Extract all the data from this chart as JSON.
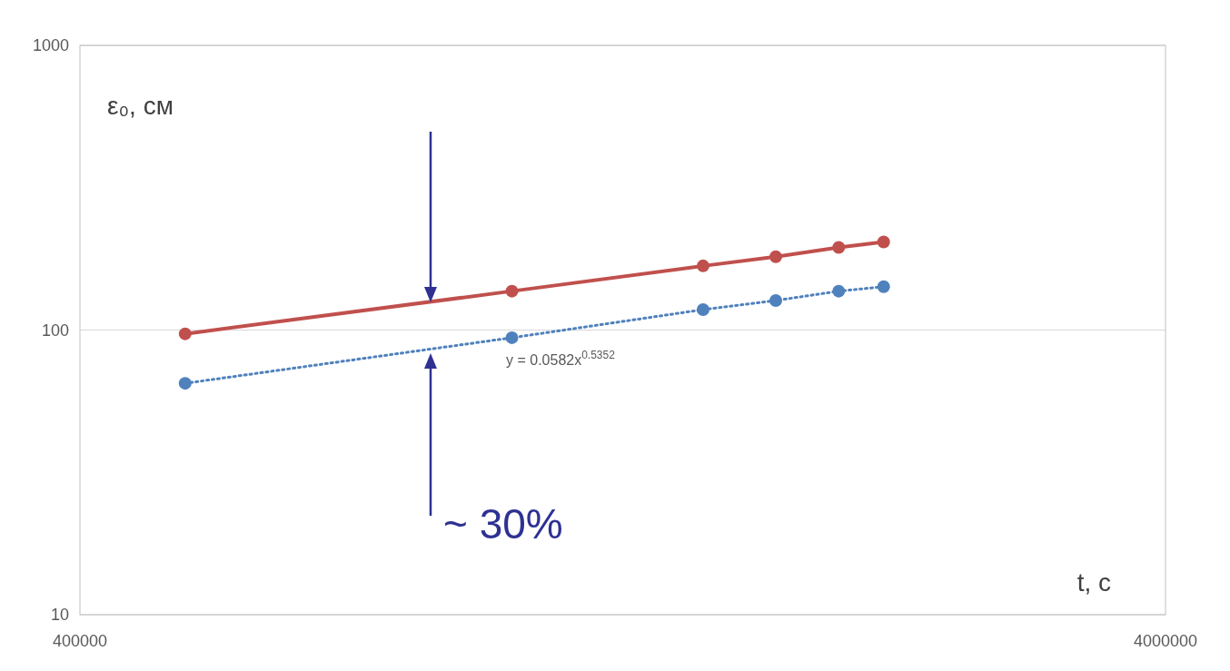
{
  "chart_data": {
    "type": "line",
    "xlabel": "t, с",
    "ylabel": "ε₀, см",
    "log": "xy",
    "xlim": [
      400000,
      4000000
    ],
    "xticks": [
      400000,
      4000000
    ],
    "ylim": [
      10,
      1000
    ],
    "yticks": [
      10,
      100,
      1000
    ],
    "grid": "y",
    "marker": "circle",
    "series": [
      {
        "color": "#c0504d",
        "line_style": "solid",
        "x": [
          500000,
          1000000,
          1500000,
          1750000,
          2000000,
          2200000
        ],
        "values": [
          97,
          137,
          168,
          181,
          195,
          204
        ]
      },
      {
        "color": "#4f81bd",
        "line_style": "dotted",
        "x": [
          500000,
          1000000,
          1500000,
          1750000,
          2000000,
          2200000
        ],
        "values": [
          65,
          94,
          118,
          127,
          137,
          142
        ]
      }
    ],
    "annotations": [
      "y = 0.0582x$^{0.5352}$",
      "~ 30%"
    ]
  }
}
